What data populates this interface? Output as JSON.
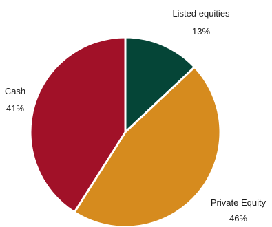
{
  "chart_data": {
    "type": "pie",
    "title": "",
    "slices": [
      {
        "name": "Listed equities",
        "label": "Listed equities",
        "pct_label": "13%",
        "value": 13,
        "color": "#054537"
      },
      {
        "name": "Private Equity",
        "label": "Private Equity",
        "pct_label": "46%",
        "value": 46,
        "color": "#D68B1E"
      },
      {
        "name": "Cash",
        "label": "Cash",
        "pct_label": "41%",
        "value": 41,
        "color": "#A11128"
      }
    ],
    "start_angle_deg": 0,
    "direction": "clockwise",
    "legend": "none"
  }
}
